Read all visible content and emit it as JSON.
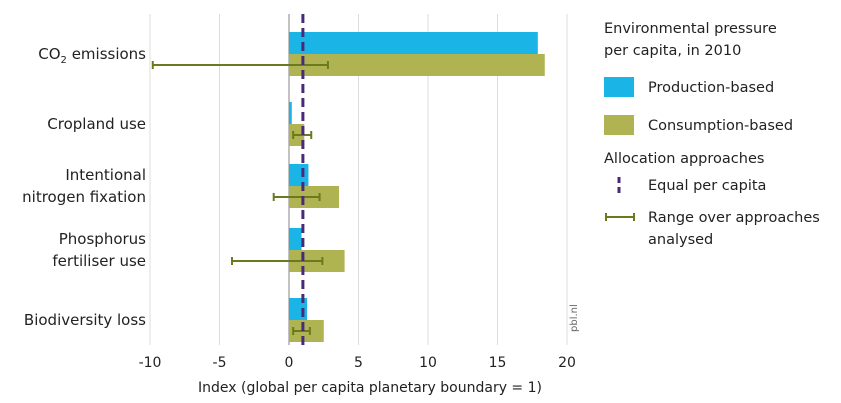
{
  "chart_data": {
    "type": "bar",
    "orientation": "horizontal",
    "categories": [
      {
        "lines": [
          "CO",
          "2",
          " emissions"
        ],
        "subscript": true
      },
      {
        "lines": [
          "Cropland use"
        ]
      },
      {
        "lines": [
          "Intentional",
          "nitrogen fixation"
        ]
      },
      {
        "lines": [
          "Phosphorus",
          "fertiliser use"
        ]
      },
      {
        "lines": [
          "Biodiversity loss"
        ]
      }
    ],
    "series": [
      {
        "name": "Production-based",
        "color": "#1ab4e6",
        "values": [
          17.9,
          0.2,
          1.4,
          0.9,
          1.3
        ]
      },
      {
        "name": "Consumption-based",
        "color": "#b0b352",
        "values": [
          18.4,
          1.1,
          3.6,
          4.0,
          2.5
        ]
      }
    ],
    "error_range": {
      "series": "Consumption-based",
      "color": "#6b7a1d",
      "low": [
        -9.8,
        0.3,
        -1.1,
        -4.1,
        0.3
      ],
      "high": [
        2.8,
        1.6,
        2.2,
        2.4,
        1.5
      ]
    },
    "reference_line": {
      "value": 1,
      "color": "#4a2a78"
    },
    "xlim": [
      -10,
      20
    ],
    "xticks": [
      -10,
      -5,
      0,
      5,
      10,
      15,
      20
    ],
    "xlabel": "Index (global per capita planetary boundary = 1)",
    "grid": true,
    "source_label": "pbl.nl",
    "legend": {
      "position": "right",
      "title_lines": [
        "Environmental pressure",
        "per capita, in 2010"
      ],
      "items": [
        {
          "label": "Production-based",
          "color": "#1ab4e6"
        },
        {
          "label": "Consumption-based",
          "color": "#b0b352"
        }
      ],
      "section2_title": "Allocation approaches",
      "section2_items": [
        {
          "symbol": "dashed-line",
          "lines": [
            "Equal per capita"
          ],
          "color": "#4a2a78"
        },
        {
          "symbol": "range-bar",
          "lines": [
            "Range over approaches",
            "analysed"
          ],
          "color": "#6b7a1d"
        }
      ]
    }
  }
}
